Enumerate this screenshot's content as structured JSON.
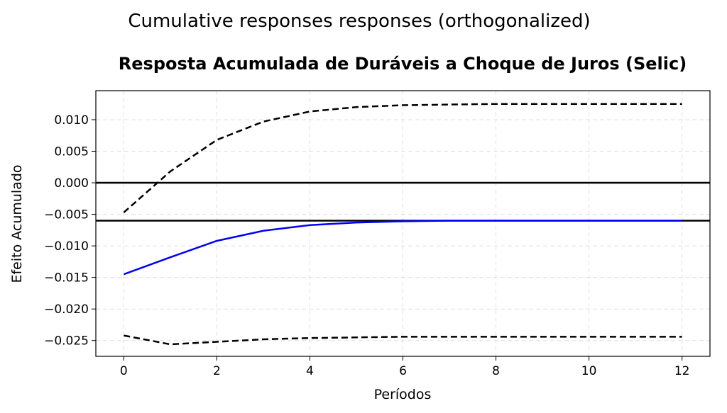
{
  "chart_data": {
    "type": "line",
    "suptitle": "Cumulative responses responses (orthogonalized)",
    "title": "Resposta Acumulada de Duráveis a Choque de Juros (Selic)",
    "x_label": "Períodos",
    "y_label": "Efeito Acumulado",
    "x": [
      0,
      1,
      2,
      3,
      4,
      5,
      6,
      7,
      8,
      9,
      10,
      11,
      12
    ],
    "series": [
      {
        "color": "#0000ff",
        "style": "solid",
        "values": [
          -0.0145,
          -0.0118,
          -0.0092,
          -0.0076,
          -0.0067,
          -0.0063,
          -0.0061,
          -0.006,
          -0.006,
          -0.006,
          -0.006,
          -0.006,
          -0.006
        ]
      },
      {
        "color": "#000000",
        "style": "dashed",
        "values": [
          -0.0047,
          0.0018,
          0.0068,
          0.0097,
          0.0113,
          0.012,
          0.0123,
          0.0124,
          0.0125,
          0.0125,
          0.0125,
          0.0125,
          0.0125
        ]
      },
      {
        "color": "#000000",
        "style": "dashed",
        "values": [
          -0.0242,
          -0.0256,
          -0.0252,
          -0.0248,
          -0.0246,
          -0.0245,
          -0.0244,
          -0.0244,
          -0.0244,
          -0.0244,
          -0.0244,
          -0.0244,
          -0.0244
        ]
      }
    ],
    "hlines": [
      0,
      -0.006
    ],
    "hline_color": "#000000",
    "xlim": [
      -0.6,
      12.6
    ],
    "ylim": [
      -0.0275,
      0.0146
    ],
    "xticks": [
      0,
      2,
      4,
      6,
      8,
      10,
      12
    ],
    "yticks": [
      {
        "value": -0.025,
        "label": "−0.025"
      },
      {
        "value": -0.02,
        "label": "−0.020"
      },
      {
        "value": -0.015,
        "label": "−0.015"
      },
      {
        "value": -0.01,
        "label": "−0.010"
      },
      {
        "value": -0.005,
        "label": "−0.005"
      },
      {
        "value": 0,
        "label": "0.000"
      },
      0.005,
      {
        "value": 0.01,
        "label": "0.010"
      }
    ],
    "grid": true
  }
}
